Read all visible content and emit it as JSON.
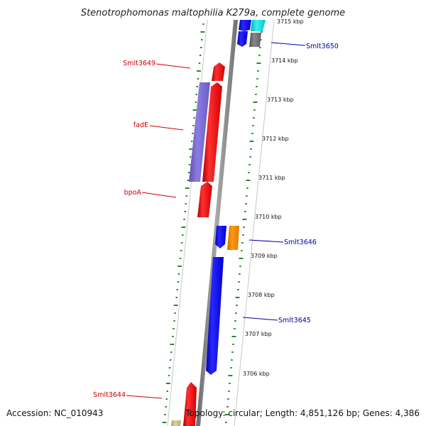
{
  "title": "Stenotrophomonas maltophilia K279a, complete genome",
  "accession_text": "Accession: NC_010943",
  "summary_text": "Topology: circular; Length: 4,851,126 bp; Genes: 4,386",
  "colors": {
    "backbone": "#888888",
    "minus_strand_label": "#cc0000",
    "plus_strand_label": "#0000aa",
    "ticks": "#2a8a2a",
    "red_gene": "#ee1111",
    "blue_gene": "#1515ee",
    "purple_feature": "#8070d0",
    "orange_feature": "#ff8c00",
    "cyan_feature": "#11dddd",
    "gray_feature": "#6e6e6e",
    "khaki_feature": "#c8bc80"
  },
  "scale_labels": [
    "3715 kbp",
    "3714 kbp",
    "3713 kbp",
    "3712 kbp",
    "3711 kbp",
    "3710 kbp",
    "3709 kbp",
    "3708 kbp",
    "3707 kbp",
    "3706 kbp"
  ],
  "gene_labels": [
    {
      "text": "Smlt3650",
      "strand": "plus"
    },
    {
      "text": "Smlt3649",
      "strand": "minus"
    },
    {
      "text": "fadE",
      "strand": "minus"
    },
    {
      "text": "bpoA",
      "strand": "minus"
    },
    {
      "text": "Smlt3646",
      "strand": "plus"
    },
    {
      "text": "Smlt3645",
      "strand": "plus"
    },
    {
      "text": "Smlt3644",
      "strand": "minus"
    }
  ]
}
